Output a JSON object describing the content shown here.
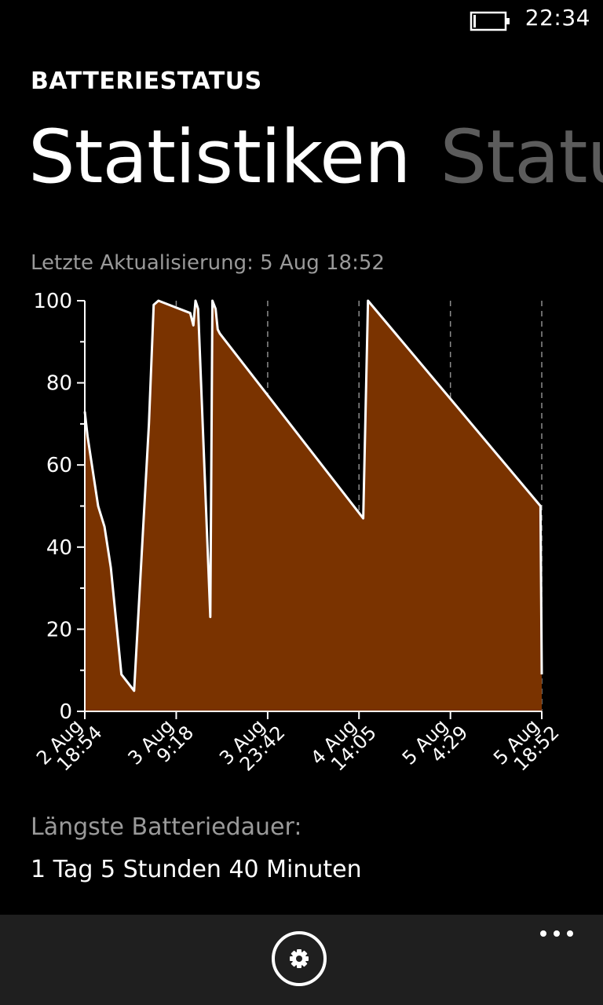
{
  "status_bar": {
    "time": "22:34",
    "battery_icon": "battery-icon"
  },
  "app": {
    "title": "BATTERIESTATUS"
  },
  "pivot": {
    "active": "Statistiken",
    "inactive": "Status"
  },
  "last_update": "Letzte Aktualisierung: 5 Aug 18:52",
  "chart_data": {
    "type": "area",
    "title": "",
    "xlabel": "",
    "ylabel": "",
    "ylim": [
      0,
      100
    ],
    "yticks": [
      "0",
      "20",
      "40",
      "60",
      "80",
      "100"
    ],
    "xticks": [
      {
        "date": "2 Aug",
        "time": "18:54"
      },
      {
        "date": "3 Aug",
        "time": "9:18"
      },
      {
        "date": "3 Aug",
        "time": "23:42"
      },
      {
        "date": "4 Aug",
        "time": "14:05"
      },
      {
        "date": "5 Aug",
        "time": "4:29"
      },
      {
        "date": "5 Aug",
        "time": "18:52"
      }
    ],
    "grid": "vertical-dashed",
    "fill_color": "#7a3300",
    "line_color": "#ffffff",
    "series": [
      {
        "x": [
          "2 Aug 18:54",
          "2 Aug 19:20",
          "2 Aug 21:00",
          "2 Aug 22:00",
          "2 Aug 23:00",
          "2 Aug 23:50",
          "3 Aug 0:40",
          "3 Aug 2:40",
          "3 Aug 5:00",
          "3 Aug 5:45",
          "3 Aug 6:30",
          "3 Aug 11:30",
          "3 Aug 12:00",
          "3 Aug 12:20",
          "3 Aug 12:45",
          "3 Aug 14:40",
          "3 Aug 15:00",
          "3 Aug 15:30",
          "3 Aug 15:50",
          "3 Aug 16:10",
          "4 Aug 14:45",
          "4 Aug 15:30",
          "5 Aug 18:40",
          "5 Aug 18:52"
        ],
        "y": [
          73,
          67,
          50,
          45,
          35,
          22,
          9,
          5,
          70,
          99,
          100,
          97,
          94,
          100,
          98,
          23,
          100,
          98,
          93,
          92,
          47,
          100,
          50,
          9
        ]
      }
    ]
  },
  "longest": {
    "label": "Längste Batteriedauer:",
    "value": "1 Tag 5 Stunden 40 Minuten"
  },
  "app_bar": {
    "settings_icon": "gear-icon",
    "more_icon": "ellipsis-icon"
  }
}
